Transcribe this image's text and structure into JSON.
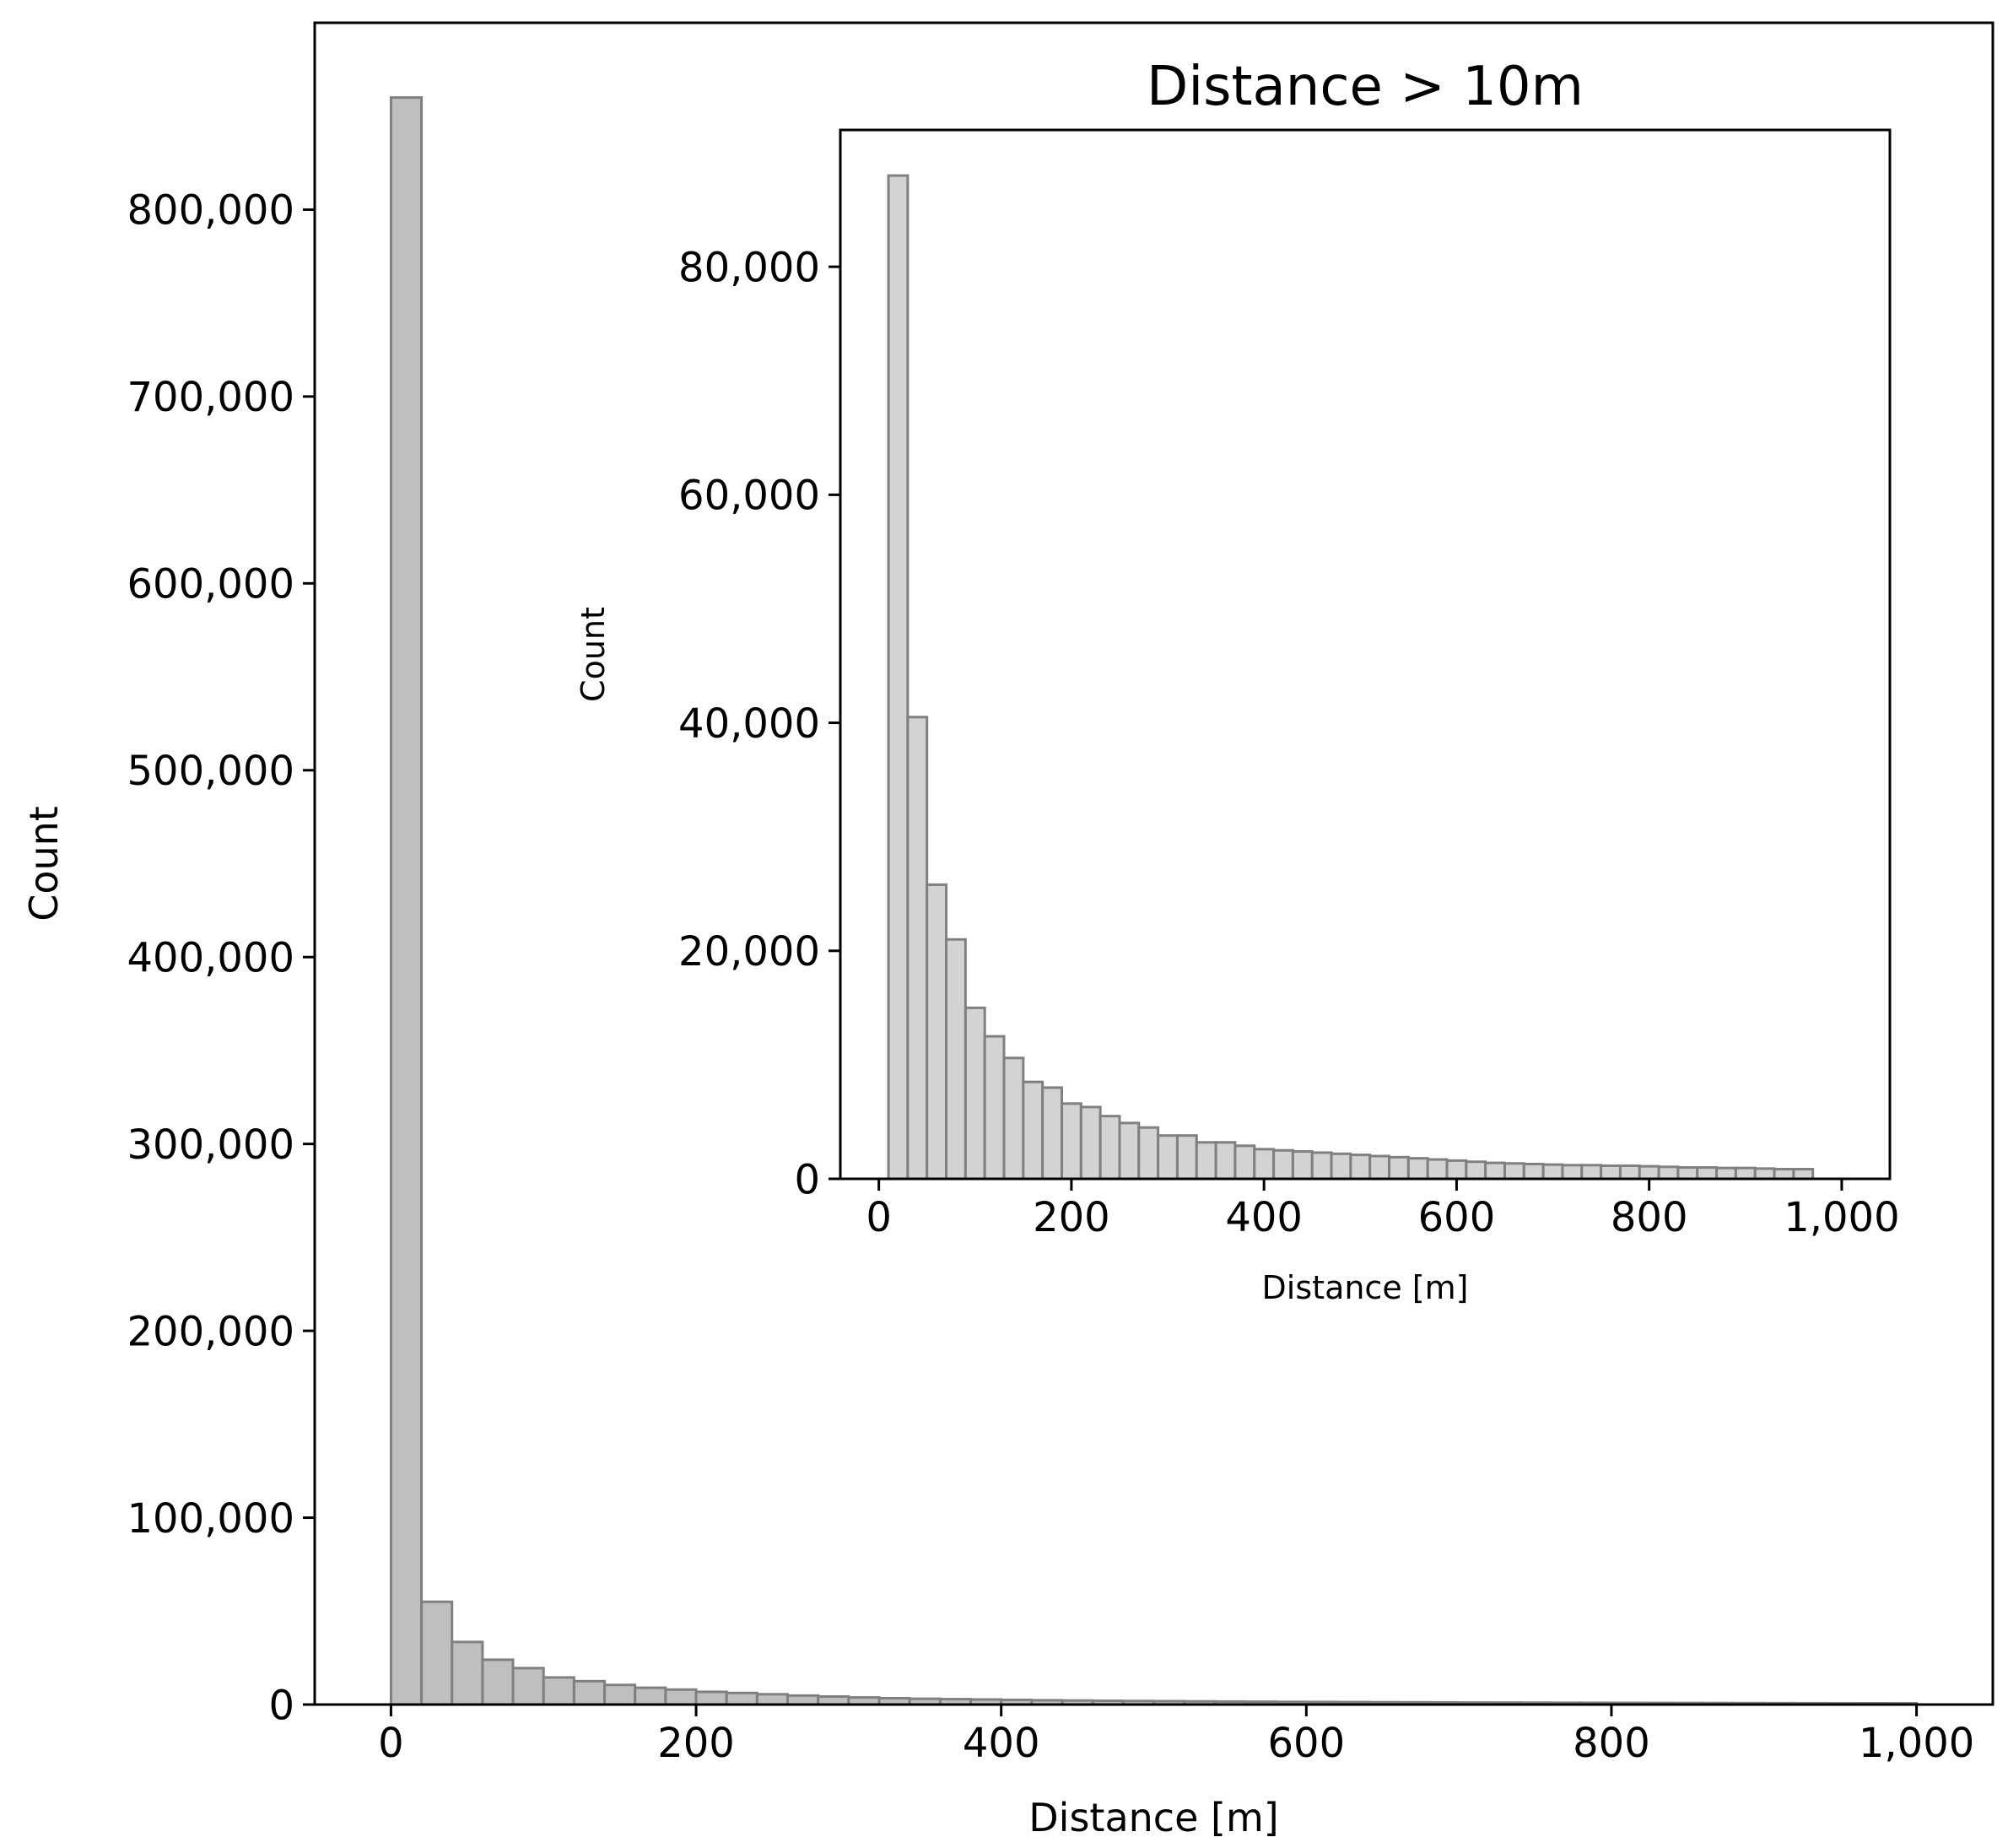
{
  "chart_data": [
    {
      "type": "bar",
      "subtype": "histogram",
      "title": "",
      "xlabel": "Distance [m]",
      "ylabel": "Count",
      "xlim": [
        -50,
        1050
      ],
      "ylim": [
        0,
        900000
      ],
      "x_ticks": [
        0,
        200,
        400,
        600,
        800,
        1000
      ],
      "x_tick_labels": [
        "0",
        "200",
        "400",
        "600",
        "800",
        "1,000"
      ],
      "y_ticks": [
        0,
        100000,
        200000,
        300000,
        400000,
        500000,
        600000,
        700000,
        800000
      ],
      "y_tick_labels": [
        "0",
        "100,000",
        "200,000",
        "300,000",
        "400,000",
        "500,000",
        "600,000",
        "700,000",
        "800,000"
      ],
      "grid": false,
      "legend": "none",
      "bin_width": 20,
      "bin_starts": [
        0,
        20,
        40,
        60,
        80,
        100,
        120,
        140,
        160,
        180,
        200,
        220,
        240,
        260,
        280,
        300,
        320,
        340,
        360,
        380,
        400,
        420,
        440,
        460,
        480,
        500,
        520,
        540,
        560,
        580,
        600,
        620,
        640,
        660,
        680,
        700,
        720,
        740,
        760,
        780,
        800,
        820,
        840,
        860,
        880,
        900,
        920,
        940,
        960,
        980
      ],
      "values": [
        860000,
        55000,
        33500,
        24000,
        19500,
        14500,
        12500,
        10500,
        9000,
        8000,
        6800,
        6200,
        5500,
        4800,
        4300,
        3800,
        3400,
        3100,
        2900,
        2700,
        2500,
        2300,
        2150,
        2000,
        1900,
        1800,
        1700,
        1600,
        1520,
        1440,
        1380,
        1320,
        1260,
        1200,
        1150,
        1100,
        1060,
        1020,
        980,
        940,
        900,
        870,
        840,
        810,
        780,
        750,
        720,
        700,
        680,
        660
      ],
      "fill_color": "#bfbfbf",
      "edge_color": "#808080"
    },
    {
      "type": "bar",
      "subtype": "histogram",
      "inset": true,
      "title": "Distance > 10m",
      "xlabel": "Distance [m]",
      "ylabel": "Count",
      "xlim": [
        -40,
        1050
      ],
      "ylim": [
        0,
        92000
      ],
      "x_ticks": [
        0,
        200,
        400,
        600,
        800,
        1000
      ],
      "x_tick_labels": [
        "0",
        "200",
        "400",
        "600",
        "800",
        "1,000"
      ],
      "y_ticks": [
        0,
        20000,
        40000,
        60000,
        80000
      ],
      "y_tick_labels": [
        "0",
        "20,000",
        "40,000",
        "60,000",
        "80,000"
      ],
      "grid": false,
      "legend": "none",
      "bin_width": 20,
      "bin_starts": [
        10,
        30,
        50,
        70,
        90,
        110,
        130,
        150,
        170,
        190,
        210,
        230,
        250,
        270,
        290,
        310,
        330,
        350,
        370,
        390,
        410,
        430,
        450,
        470,
        490,
        510,
        530,
        550,
        570,
        590,
        610,
        630,
        650,
        670,
        690,
        710,
        730,
        750,
        770,
        790,
        810,
        830,
        850,
        870,
        890,
        910,
        930,
        950
      ],
      "values": [
        88000,
        40500,
        25800,
        21000,
        15000,
        12500,
        10600,
        8500,
        8000,
        6600,
        6300,
        5500,
        4900,
        4500,
        3800,
        3800,
        3200,
        3200,
        2900,
        2600,
        2500,
        2400,
        2300,
        2200,
        2100,
        2000,
        1900,
        1800,
        1700,
        1600,
        1500,
        1400,
        1350,
        1300,
        1250,
        1200,
        1200,
        1150,
        1150,
        1100,
        1050,
        1000,
        1000,
        950,
        950,
        900,
        850,
        850
      ],
      "fill_color": "#d3d3d3",
      "edge_color": "#808080"
    }
  ]
}
